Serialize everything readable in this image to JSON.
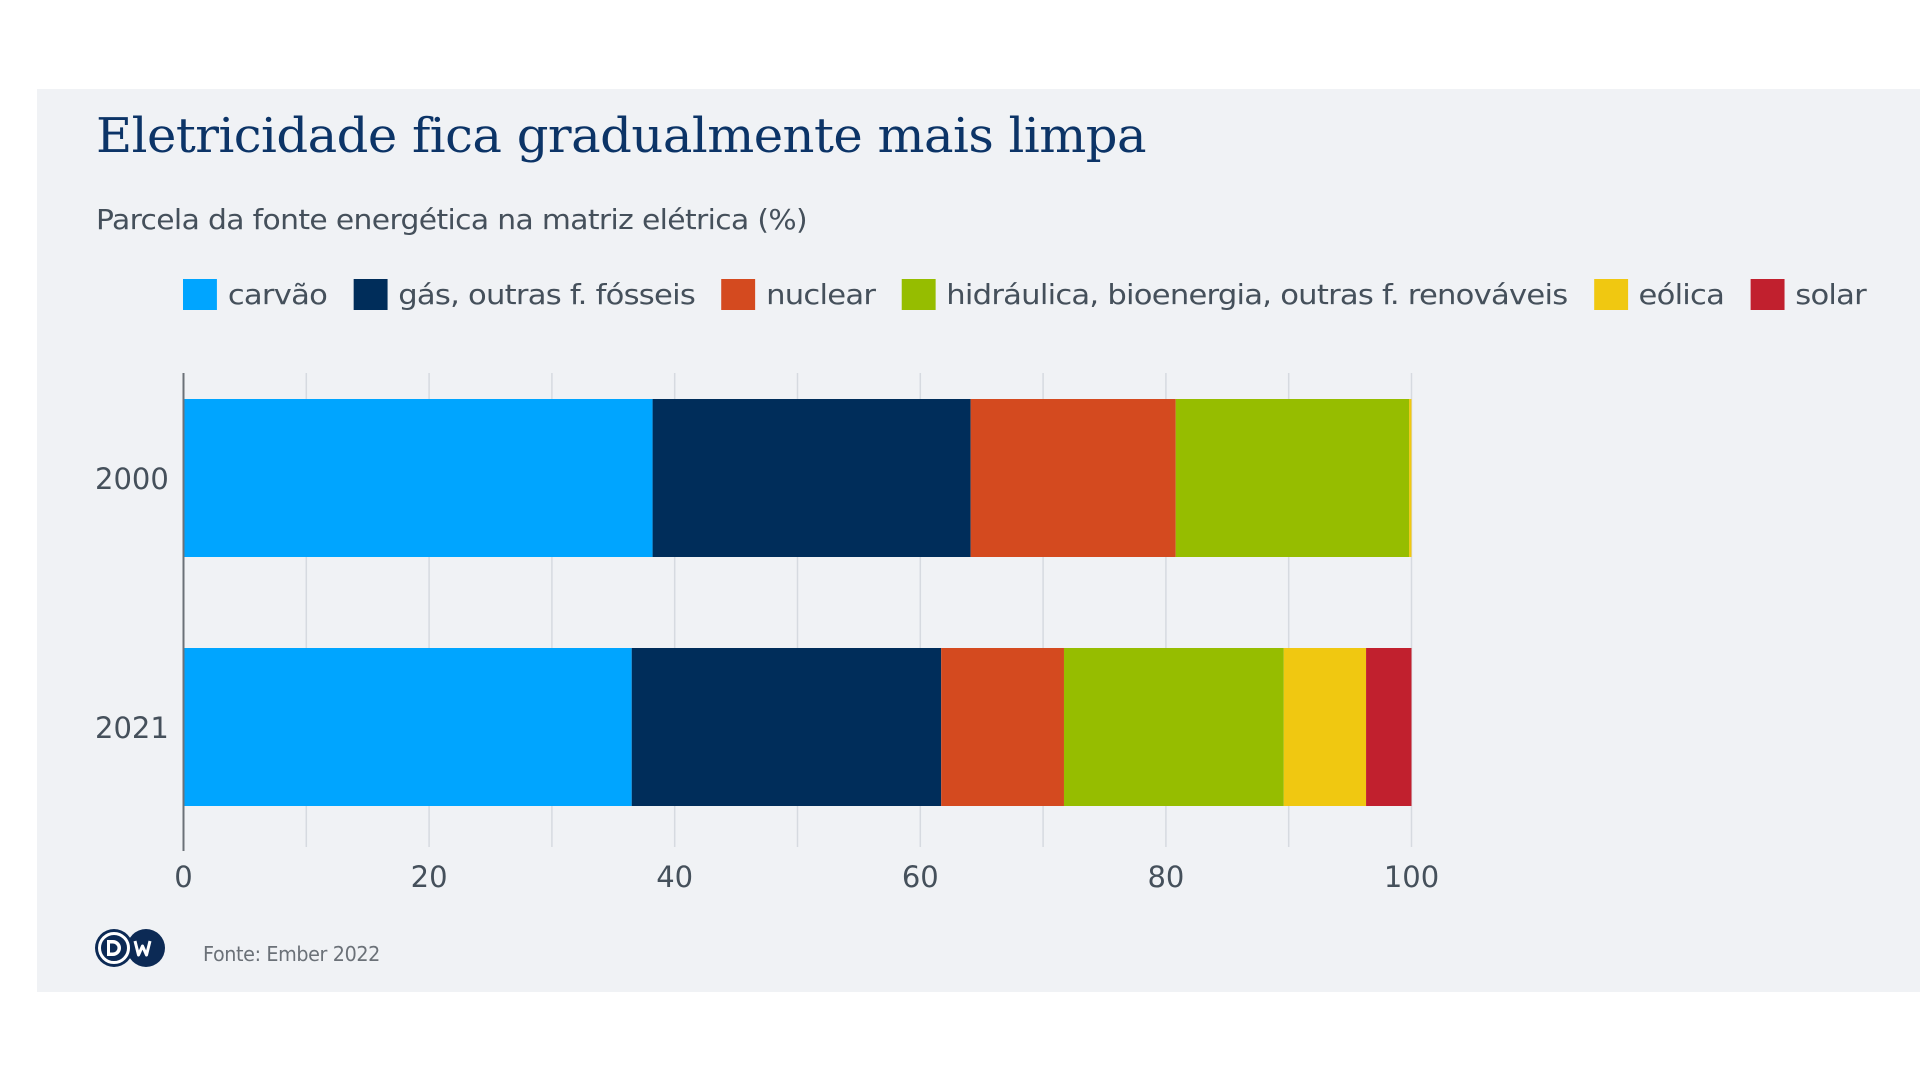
{
  "header": {
    "title": "Eletricidade fica gradualmente mais limpa",
    "subtitle": "Parcela da fonte energética na matriz elétrica (%)"
  },
  "footer": {
    "logo_text": "DW",
    "source": "Fonte: Ember 2022"
  },
  "colors": {
    "background": "#f0f2f5",
    "title": "#0c3467",
    "text": "#45505b",
    "grid": "#d6dae0",
    "axis": "#6b7178"
  },
  "chart_data": {
    "type": "bar",
    "orientation": "horizontal",
    "stacked": true,
    "title": "Eletricidade fica gradualmente mais limpa",
    "subtitle": "Parcela da fonte energética na matriz elétrica (%)",
    "xlabel": "",
    "ylabel": "",
    "xlim": [
      0,
      100
    ],
    "x_ticks": [
      0,
      20,
      40,
      60,
      80,
      100
    ],
    "x_tick_labels": [
      "0",
      "20",
      "40",
      "60",
      "80",
      "100"
    ],
    "minor_gridlines_every": 10,
    "grid": true,
    "legend_position": "top",
    "categories": [
      "2000",
      "2021"
    ],
    "series": [
      {
        "name": "carvão",
        "color": "#00a5ff",
        "values": [
          38.2,
          36.5
        ]
      },
      {
        "name": "gás, outras f. fósseis",
        "color": "#002d5a",
        "values": [
          25.9,
          25.2
        ]
      },
      {
        "name": "nuclear",
        "color": "#d44a1f",
        "values": [
          16.7,
          10.0
        ]
      },
      {
        "name": "hidráulica, bioenergia, outras f. renováveis",
        "color": "#96bd00",
        "values": [
          19.0,
          17.9
        ]
      },
      {
        "name": "eólica",
        "color": "#f0c811",
        "values": [
          0.2,
          6.7
        ]
      },
      {
        "name": "solar",
        "color": "#c1202e",
        "values": [
          0.0,
          3.7
        ]
      }
    ],
    "source": "Fonte: Ember 2022"
  }
}
